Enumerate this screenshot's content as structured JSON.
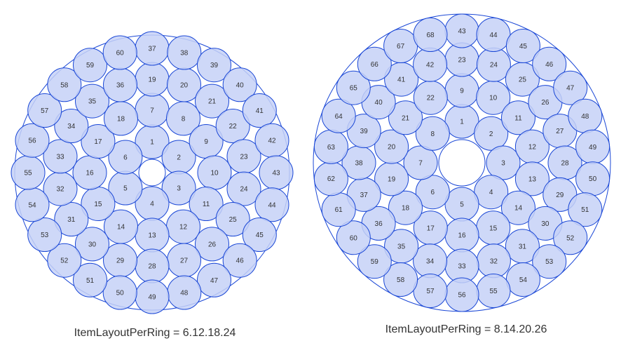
{
  "colors": {
    "stroke": "#1a47d6",
    "fill": "#c6d1f7",
    "background": "#ffffff",
    "text": "#333333"
  },
  "diagrams": [
    {
      "caption": "ItemLayoutPerRing = 6.12.18.24",
      "ring_counts": [
        6,
        12,
        18,
        24
      ]
    },
    {
      "caption": "ItemLayoutPerRing = 8.14.20.26",
      "ring_counts": [
        8,
        14,
        20,
        26
      ]
    }
  ]
}
